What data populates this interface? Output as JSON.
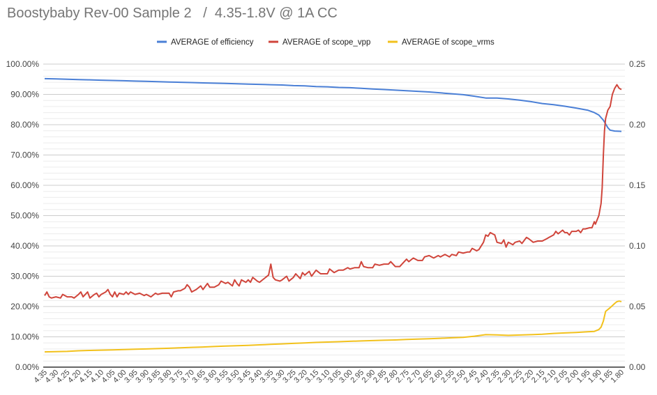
{
  "chart_data": {
    "type": "line",
    "title": "Boostybaby Rev-00 Sample 2   /  4.35-1.8V @ 1A CC",
    "xlabel": "",
    "ylabel_left": "",
    "ylabel_right": "",
    "x_reversed": true,
    "x_ticks": [
      "4.35",
      "4.30",
      "4.25",
      "4.20",
      "4.15",
      "4.10",
      "4.05",
      "4.00",
      "3.95",
      "3.90",
      "3.85",
      "3.80",
      "3.75",
      "3.70",
      "3.65",
      "3.60",
      "3.55",
      "3.50",
      "3.45",
      "3.40",
      "3.35",
      "3.30",
      "3.25",
      "3.20",
      "3.15",
      "3.10",
      "3.05",
      "3.00",
      "2.95",
      "2.90",
      "2.85",
      "2.80",
      "2.75",
      "2.70",
      "2.65",
      "2.60",
      "2.55",
      "2.50",
      "2.45",
      "2.40",
      "2.35",
      "2.30",
      "2.25",
      "2.20",
      "2.15",
      "2.10",
      "2.05",
      "2.00",
      "1.95",
      "1.90",
      "1.85",
      "1.80"
    ],
    "xlim": [
      4.35,
      1.8
    ],
    "left_axis": {
      "ticks": [
        "0.00%",
        "10.00%",
        "20.00%",
        "30.00%",
        "40.00%",
        "50.00%",
        "60.00%",
        "70.00%",
        "80.00%",
        "90.00%",
        "100.00%"
      ],
      "ylim": [
        0,
        100
      ]
    },
    "right_axis": {
      "ticks": [
        "0.00",
        "0.05",
        "0.10",
        "0.15",
        "0.20",
        "0.25"
      ],
      "ylim": [
        0,
        0.25
      ]
    },
    "grid": true,
    "legend_position": "top",
    "series": [
      {
        "name": "AVERAGE of efficiency",
        "axis": "left",
        "color": "#4a7fd6",
        "points": [
          [
            4.35,
            95.2
          ],
          [
            4.3,
            95.1
          ],
          [
            4.25,
            95.0
          ],
          [
            4.2,
            94.9
          ],
          [
            4.15,
            94.8
          ],
          [
            4.1,
            94.7
          ],
          [
            4.05,
            94.6
          ],
          [
            4.0,
            94.5
          ],
          [
            3.95,
            94.4
          ],
          [
            3.9,
            94.3
          ],
          [
            3.85,
            94.2
          ],
          [
            3.8,
            94.1
          ],
          [
            3.75,
            94.0
          ],
          [
            3.7,
            93.9
          ],
          [
            3.65,
            93.8
          ],
          [
            3.6,
            93.7
          ],
          [
            3.55,
            93.6
          ],
          [
            3.5,
            93.5
          ],
          [
            3.45,
            93.4
          ],
          [
            3.4,
            93.3
          ],
          [
            3.35,
            93.2
          ],
          [
            3.3,
            93.1
          ],
          [
            3.25,
            92.9
          ],
          [
            3.2,
            92.8
          ],
          [
            3.15,
            92.6
          ],
          [
            3.1,
            92.5
          ],
          [
            3.05,
            92.3
          ],
          [
            3.0,
            92.2
          ],
          [
            2.95,
            92.0
          ],
          [
            2.9,
            91.8
          ],
          [
            2.85,
            91.6
          ],
          [
            2.8,
            91.4
          ],
          [
            2.75,
            91.2
          ],
          [
            2.7,
            91.0
          ],
          [
            2.65,
            90.8
          ],
          [
            2.6,
            90.5
          ],
          [
            2.55,
            90.2
          ],
          [
            2.5,
            89.9
          ],
          [
            2.45,
            89.4
          ],
          [
            2.4,
            88.8
          ],
          [
            2.35,
            88.8
          ],
          [
            2.3,
            88.5
          ],
          [
            2.25,
            88.1
          ],
          [
            2.2,
            87.6
          ],
          [
            2.15,
            87.0
          ],
          [
            2.1,
            86.6
          ],
          [
            2.05,
            86.1
          ],
          [
            2.0,
            85.5
          ],
          [
            1.95,
            84.8
          ],
          [
            1.92,
            84.0
          ],
          [
            1.9,
            83.2
          ],
          [
            1.88,
            81.5
          ],
          [
            1.86,
            79.0
          ],
          [
            1.85,
            78.2
          ],
          [
            1.83,
            77.9
          ],
          [
            1.8,
            77.8
          ]
        ]
      },
      {
        "name": "AVERAGE of scope_vpp",
        "axis": "right",
        "color": "#d0453b",
        "points": [
          [
            4.35,
            0.059
          ],
          [
            4.34,
            0.062
          ],
          [
            4.33,
            0.058
          ],
          [
            4.32,
            0.057
          ],
          [
            4.3,
            0.058
          ],
          [
            4.28,
            0.057
          ],
          [
            4.27,
            0.06
          ],
          [
            4.25,
            0.058
          ],
          [
            4.23,
            0.058
          ],
          [
            4.22,
            0.057
          ],
          [
            4.2,
            0.06
          ],
          [
            4.19,
            0.062
          ],
          [
            4.18,
            0.058
          ],
          [
            4.16,
            0.062
          ],
          [
            4.15,
            0.057
          ],
          [
            4.13,
            0.06
          ],
          [
            4.12,
            0.061
          ],
          [
            4.11,
            0.058
          ],
          [
            4.1,
            0.06
          ],
          [
            4.08,
            0.062
          ],
          [
            4.07,
            0.064
          ],
          [
            4.06,
            0.06
          ],
          [
            4.05,
            0.058
          ],
          [
            4.04,
            0.062
          ],
          [
            4.03,
            0.058
          ],
          [
            4.02,
            0.061
          ],
          [
            4.0,
            0.06
          ],
          [
            3.99,
            0.062
          ],
          [
            3.98,
            0.06
          ],
          [
            3.97,
            0.062
          ],
          [
            3.95,
            0.06
          ],
          [
            3.93,
            0.061
          ],
          [
            3.91,
            0.059
          ],
          [
            3.9,
            0.06
          ],
          [
            3.88,
            0.058
          ],
          [
            3.86,
            0.061
          ],
          [
            3.85,
            0.06
          ],
          [
            3.83,
            0.061
          ],
          [
            3.8,
            0.061
          ],
          [
            3.79,
            0.058
          ],
          [
            3.78,
            0.062
          ],
          [
            3.76,
            0.063
          ],
          [
            3.75,
            0.063
          ],
          [
            3.73,
            0.065
          ],
          [
            3.72,
            0.068
          ],
          [
            3.71,
            0.066
          ],
          [
            3.7,
            0.062
          ],
          [
            3.68,
            0.064
          ],
          [
            3.66,
            0.067
          ],
          [
            3.65,
            0.064
          ],
          [
            3.63,
            0.069
          ],
          [
            3.62,
            0.066
          ],
          [
            3.6,
            0.066
          ],
          [
            3.58,
            0.068
          ],
          [
            3.57,
            0.071
          ],
          [
            3.55,
            0.069
          ],
          [
            3.54,
            0.07
          ],
          [
            3.52,
            0.067
          ],
          [
            3.51,
            0.072
          ],
          [
            3.5,
            0.069
          ],
          [
            3.49,
            0.067
          ],
          [
            3.48,
            0.072
          ],
          [
            3.46,
            0.07
          ],
          [
            3.45,
            0.072
          ],
          [
            3.44,
            0.07
          ],
          [
            3.43,
            0.074
          ],
          [
            3.41,
            0.071
          ],
          [
            3.4,
            0.07
          ],
          [
            3.38,
            0.073
          ],
          [
            3.36,
            0.076
          ],
          [
            3.35,
            0.085
          ],
          [
            3.34,
            0.074
          ],
          [
            3.33,
            0.072
          ],
          [
            3.31,
            0.071
          ],
          [
            3.3,
            0.072
          ],
          [
            3.28,
            0.075
          ],
          [
            3.27,
            0.071
          ],
          [
            3.25,
            0.074
          ],
          [
            3.24,
            0.077
          ],
          [
            3.22,
            0.073
          ],
          [
            3.21,
            0.078
          ],
          [
            3.2,
            0.076
          ],
          [
            3.18,
            0.079
          ],
          [
            3.17,
            0.075
          ],
          [
            3.15,
            0.08
          ],
          [
            3.13,
            0.077
          ],
          [
            3.12,
            0.077
          ],
          [
            3.1,
            0.077
          ],
          [
            3.09,
            0.081
          ],
          [
            3.07,
            0.078
          ],
          [
            3.05,
            0.08
          ],
          [
            3.03,
            0.08
          ],
          [
            3.01,
            0.082
          ],
          [
            3.0,
            0.081
          ],
          [
            2.98,
            0.082
          ],
          [
            2.96,
            0.082
          ],
          [
            2.95,
            0.087
          ],
          [
            2.94,
            0.083
          ],
          [
            2.92,
            0.082
          ],
          [
            2.9,
            0.082
          ],
          [
            2.89,
            0.085
          ],
          [
            2.87,
            0.084
          ],
          [
            2.85,
            0.085
          ],
          [
            2.83,
            0.085
          ],
          [
            2.82,
            0.087
          ],
          [
            2.8,
            0.083
          ],
          [
            2.78,
            0.083
          ],
          [
            2.77,
            0.085
          ],
          [
            2.75,
            0.089
          ],
          [
            2.74,
            0.087
          ],
          [
            2.72,
            0.09
          ],
          [
            2.7,
            0.088
          ],
          [
            2.68,
            0.088
          ],
          [
            2.67,
            0.091
          ],
          [
            2.65,
            0.092
          ],
          [
            2.63,
            0.09
          ],
          [
            2.61,
            0.092
          ],
          [
            2.6,
            0.091
          ],
          [
            2.58,
            0.093
          ],
          [
            2.56,
            0.091
          ],
          [
            2.55,
            0.093
          ],
          [
            2.53,
            0.092
          ],
          [
            2.52,
            0.095
          ],
          [
            2.5,
            0.094
          ],
          [
            2.48,
            0.095
          ],
          [
            2.47,
            0.095
          ],
          [
            2.46,
            0.098
          ],
          [
            2.44,
            0.096
          ],
          [
            2.43,
            0.097
          ],
          [
            2.41,
            0.103
          ],
          [
            2.4,
            0.109
          ],
          [
            2.39,
            0.108
          ],
          [
            2.38,
            0.111
          ],
          [
            2.36,
            0.109
          ],
          [
            2.35,
            0.103
          ],
          [
            2.33,
            0.102
          ],
          [
            2.32,
            0.105
          ],
          [
            2.31,
            0.099
          ],
          [
            2.3,
            0.103
          ],
          [
            2.28,
            0.101
          ],
          [
            2.27,
            0.103
          ],
          [
            2.25,
            0.104
          ],
          [
            2.24,
            0.102
          ],
          [
            2.22,
            0.107
          ],
          [
            2.21,
            0.106
          ],
          [
            2.19,
            0.103
          ],
          [
            2.17,
            0.104
          ],
          [
            2.15,
            0.104
          ],
          [
            2.13,
            0.106
          ],
          [
            2.12,
            0.107
          ],
          [
            2.1,
            0.109
          ],
          [
            2.09,
            0.112
          ],
          [
            2.08,
            0.11
          ],
          [
            2.06,
            0.113
          ],
          [
            2.05,
            0.111
          ],
          [
            2.04,
            0.111
          ],
          [
            2.03,
            0.109
          ],
          [
            2.02,
            0.112
          ],
          [
            2.0,
            0.112
          ],
          [
            1.99,
            0.113
          ],
          [
            1.98,
            0.111
          ],
          [
            1.97,
            0.114
          ],
          [
            1.96,
            0.114
          ],
          [
            1.94,
            0.115
          ],
          [
            1.93,
            0.115
          ],
          [
            1.92,
            0.12
          ],
          [
            1.915,
            0.118
          ],
          [
            1.9,
            0.125
          ],
          [
            1.89,
            0.135
          ],
          [
            1.885,
            0.148
          ],
          [
            1.88,
            0.175
          ],
          [
            1.875,
            0.195
          ],
          [
            1.87,
            0.205
          ],
          [
            1.86,
            0.212
          ],
          [
            1.85,
            0.215
          ],
          [
            1.84,
            0.225
          ],
          [
            1.83,
            0.23
          ],
          [
            1.82,
            0.233
          ],
          [
            1.81,
            0.23
          ],
          [
            1.8,
            0.229
          ]
        ]
      },
      {
        "name": "AVERAGE of scope_vrms",
        "axis": "right",
        "color": "#f2c11c",
        "points": [
          [
            4.35,
            0.0126
          ],
          [
            4.3,
            0.0128
          ],
          [
            4.25,
            0.013
          ],
          [
            4.2,
            0.0135
          ],
          [
            4.15,
            0.0138
          ],
          [
            4.1,
            0.014
          ],
          [
            4.05,
            0.0142
          ],
          [
            4.0,
            0.0145
          ],
          [
            3.95,
            0.0148
          ],
          [
            3.9,
            0.015
          ],
          [
            3.85,
            0.0153
          ],
          [
            3.8,
            0.0156
          ],
          [
            3.75,
            0.016
          ],
          [
            3.7,
            0.0163
          ],
          [
            3.65,
            0.0166
          ],
          [
            3.6,
            0.017
          ],
          [
            3.55,
            0.0174
          ],
          [
            3.5,
            0.0177
          ],
          [
            3.45,
            0.018
          ],
          [
            3.4,
            0.0184
          ],
          [
            3.35,
            0.0188
          ],
          [
            3.3,
            0.0192
          ],
          [
            3.25,
            0.0196
          ],
          [
            3.2,
            0.02
          ],
          [
            3.15,
            0.0204
          ],
          [
            3.1,
            0.0207
          ],
          [
            3.05,
            0.021
          ],
          [
            3.0,
            0.0213
          ],
          [
            2.95,
            0.0216
          ],
          [
            2.9,
            0.0219
          ],
          [
            2.85,
            0.0222
          ],
          [
            2.8,
            0.0224
          ],
          [
            2.75,
            0.0228
          ],
          [
            2.7,
            0.0231
          ],
          [
            2.65,
            0.0234
          ],
          [
            2.6,
            0.0238
          ],
          [
            2.55,
            0.0242
          ],
          [
            2.5,
            0.0246
          ],
          [
            2.45,
            0.0255
          ],
          [
            2.4,
            0.0268
          ],
          [
            2.35,
            0.0266
          ],
          [
            2.3,
            0.0262
          ],
          [
            2.25,
            0.0265
          ],
          [
            2.2,
            0.0268
          ],
          [
            2.15,
            0.0272
          ],
          [
            2.1,
            0.0278
          ],
          [
            2.05,
            0.0282
          ],
          [
            2.0,
            0.0286
          ],
          [
            1.95,
            0.0292
          ],
          [
            1.92,
            0.0295
          ],
          [
            1.9,
            0.031
          ],
          [
            1.89,
            0.033
          ],
          [
            1.88,
            0.038
          ],
          [
            1.87,
            0.046
          ],
          [
            1.85,
            0.049
          ],
          [
            1.83,
            0.0525
          ],
          [
            1.82,
            0.054
          ],
          [
            1.81,
            0.0545
          ],
          [
            1.8,
            0.054
          ]
        ]
      }
    ]
  }
}
